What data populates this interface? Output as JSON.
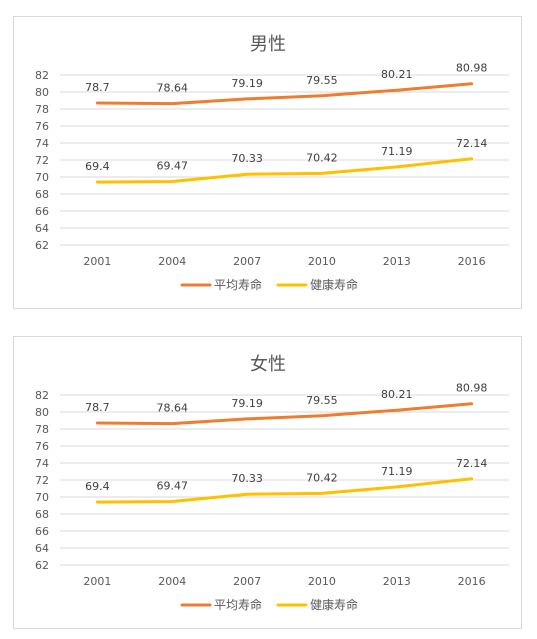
{
  "chart_data": [
    {
      "type": "line",
      "title": "男性",
      "xlabel": "",
      "ylabel": "",
      "categories": [
        "2001",
        "2004",
        "2007",
        "2010",
        "2013",
        "2016"
      ],
      "ylim": [
        62,
        82
      ],
      "ytick_step": 2,
      "grid": true,
      "legend": "bottom",
      "series": [
        {
          "name": "平均寿命",
          "color": "#ed7d31",
          "values": [
            78.7,
            78.64,
            79.19,
            79.55,
            80.21,
            80.98
          ],
          "labels": [
            "78.7",
            "78.64",
            "79.19",
            "79.55",
            "80.21",
            "80.98"
          ]
        },
        {
          "name": "健康寿命",
          "color": "#ffc000",
          "values": [
            69.4,
            69.47,
            70.33,
            70.42,
            71.19,
            72.14
          ],
          "labels": [
            "69.4",
            "69.47",
            "70.33",
            "70.42",
            "71.19",
            "72.14"
          ]
        }
      ]
    },
    {
      "type": "line",
      "title": "女性",
      "xlabel": "",
      "ylabel": "",
      "categories": [
        "2001",
        "2004",
        "2007",
        "2010",
        "2013",
        "2016"
      ],
      "ylim": [
        62,
        82
      ],
      "ytick_step": 2,
      "grid": true,
      "legend": "bottom",
      "series": [
        {
          "name": "平均寿命",
          "color": "#ed7d31",
          "values": [
            78.7,
            78.64,
            79.19,
            79.55,
            80.21,
            80.98
          ],
          "labels": [
            "78.7",
            "78.64",
            "79.19",
            "79.55",
            "80.21",
            "80.98"
          ]
        },
        {
          "name": "健康寿命",
          "color": "#ffc000",
          "values": [
            69.4,
            69.47,
            70.33,
            70.42,
            71.19,
            72.14
          ],
          "labels": [
            "69.4",
            "69.47",
            "70.33",
            "70.42",
            "71.19",
            "72.14"
          ]
        }
      ]
    }
  ]
}
